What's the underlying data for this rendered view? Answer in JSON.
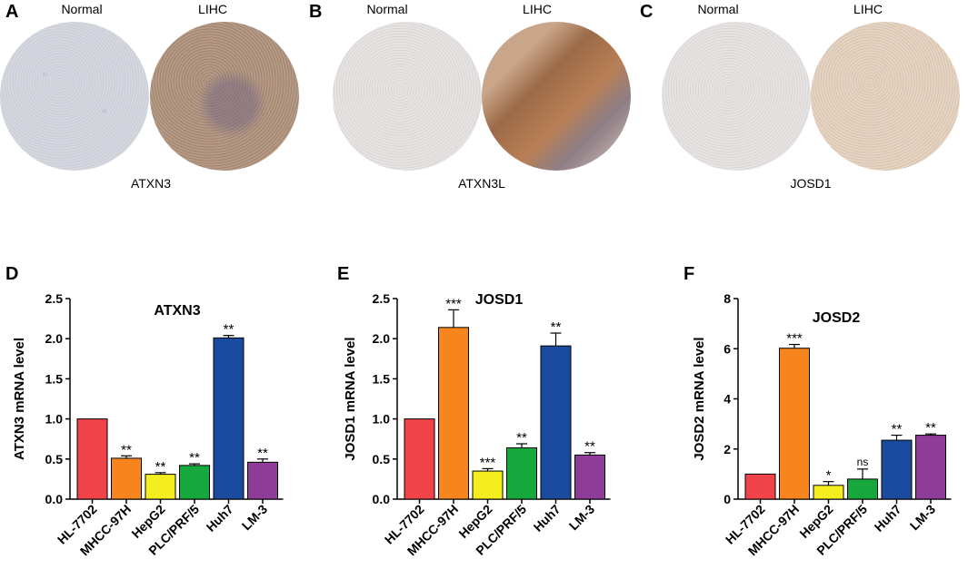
{
  "ihc_panels": [
    {
      "letter": "A",
      "normal_label": "Normal",
      "tumor_label": "LIHC",
      "gene": "ATXN3"
    },
    {
      "letter": "B",
      "normal_label": "Normal",
      "tumor_label": "LIHC",
      "gene": "ATXN3L"
    },
    {
      "letter": "C",
      "normal_label": "Normal",
      "tumor_label": "LIHC",
      "gene": "JOSD1"
    }
  ],
  "chart_data": [
    {
      "letter": "D",
      "type": "bar",
      "title": "ATXN3",
      "xlabel": "",
      "ylabel": "ATXN3 mRNA  level",
      "ylim": [
        0,
        2.5
      ],
      "yticks": [
        "0.0",
        "0.5",
        "1.0",
        "1.5",
        "2.0",
        "2.5"
      ],
      "categories": [
        "HL-7702",
        "MHCC-97H",
        "HepG2",
        "PLC/PRF/5",
        "Huh7",
        "LM-3"
      ],
      "values": [
        1.0,
        0.51,
        0.31,
        0.42,
        2.01,
        0.46
      ],
      "errors": [
        0,
        0.03,
        0.02,
        0.02,
        0.03,
        0.04
      ],
      "significance": [
        "",
        "**",
        "**",
        "**",
        "**",
        "**"
      ],
      "colors": [
        "#f0434a",
        "#f7851e",
        "#f4ee1f",
        "#16a83d",
        "#1b4b9f",
        "#8f3c98"
      ]
    },
    {
      "letter": "E",
      "type": "bar",
      "title": "JOSD1",
      "xlabel": "",
      "ylabel": "JOSD1 mRNA level",
      "ylim": [
        0,
        2.5
      ],
      "yticks": [
        "0.0",
        "0.5",
        "1.0",
        "1.5",
        "2.0",
        "2.5"
      ],
      "categories": [
        "HL-7702",
        "MHCC-97H",
        "HepG2",
        "PLC/PRF/5",
        "Huh7",
        "LM-3"
      ],
      "values": [
        1.0,
        2.14,
        0.35,
        0.64,
        1.91,
        0.55
      ],
      "errors": [
        0,
        0.22,
        0.03,
        0.05,
        0.16,
        0.03
      ],
      "significance": [
        "",
        "***",
        "***",
        "**",
        "**",
        "**"
      ],
      "colors": [
        "#f0434a",
        "#f7851e",
        "#f4ee1f",
        "#16a83d",
        "#1b4b9f",
        "#8f3c98"
      ]
    },
    {
      "letter": "F",
      "type": "bar",
      "title": "JOSD2",
      "xlabel": "",
      "ylabel": "JOSD2 mRNA level",
      "ylim": [
        0,
        8
      ],
      "yticks": [
        "0",
        "2",
        "4",
        "6",
        "8"
      ],
      "categories": [
        "HL-7702",
        "MHCC-97H",
        "HepG2",
        "PLC/PRF/5",
        "Huh7",
        "LM-3"
      ],
      "values": [
        1.0,
        6.02,
        0.55,
        0.8,
        2.35,
        2.55
      ],
      "errors": [
        0,
        0.15,
        0.15,
        0.4,
        0.2,
        0.05
      ],
      "significance": [
        "",
        "***",
        "*",
        "ns",
        "**",
        "**"
      ],
      "colors": [
        "#f0434a",
        "#f7851e",
        "#f4ee1f",
        "#16a83d",
        "#1b4b9f",
        "#8f3c98"
      ]
    }
  ]
}
